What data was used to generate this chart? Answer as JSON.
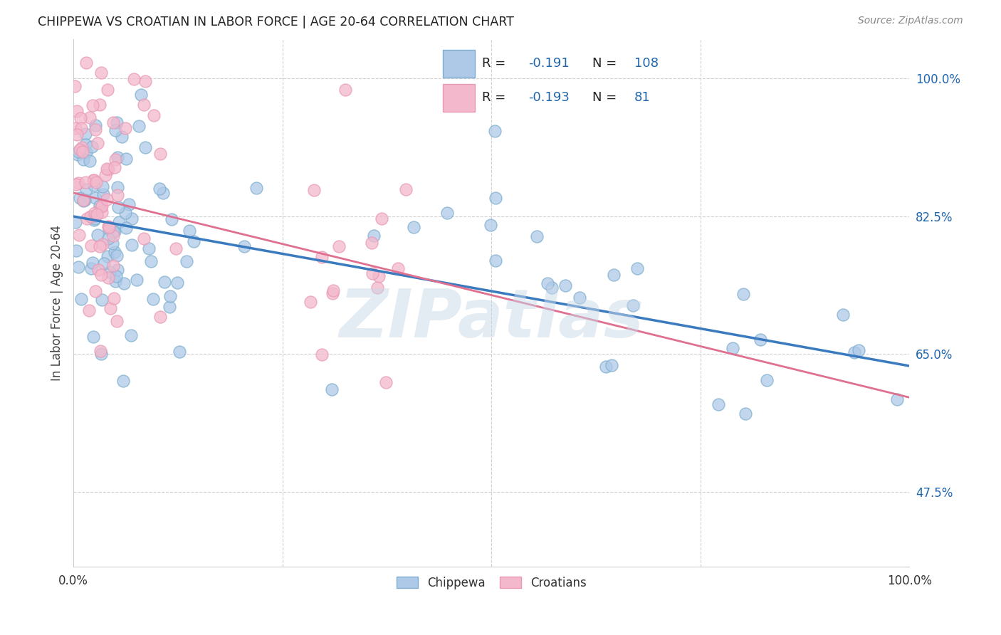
{
  "title": "CHIPPEWA VS CROATIAN IN LABOR FORCE | AGE 20-64 CORRELATION CHART",
  "source": "Source: ZipAtlas.com",
  "ylabel": "In Labor Force | Age 20-64",
  "xlim": [
    0.0,
    1.0
  ],
  "ylim": [
    0.38,
    1.05
  ],
  "yticks": [
    0.475,
    0.65,
    0.825,
    1.0
  ],
  "ytick_labels": [
    "47.5%",
    "65.0%",
    "82.5%",
    "100.0%"
  ],
  "xtick_labels": [
    "0.0%",
    "100.0%"
  ],
  "legend_r_chippewa": "-0.191",
  "legend_n_chippewa": "108",
  "legend_r_croatian": "-0.193",
  "legend_n_croatian": "81",
  "watermark": "ZIPatlas",
  "chippewa_face": "#aec9e8",
  "chippewa_edge": "#7daece",
  "croatian_face": "#f4b8cc",
  "croatian_edge": "#e899b4",
  "chippewa_line_color": "#3a7bbf",
  "croatian_line_color": "#e07090",
  "legend_text_color": "#2166ac",
  "right_axis_color": "#2166ac",
  "grid_color": "#d0d0d0",
  "watermark_color": "#c8d8e8",
  "chippewa_line_y0": 0.825,
  "chippewa_line_y1": 0.635,
  "croatian_line_y0": 0.855,
  "croatian_line_y1": 0.595
}
